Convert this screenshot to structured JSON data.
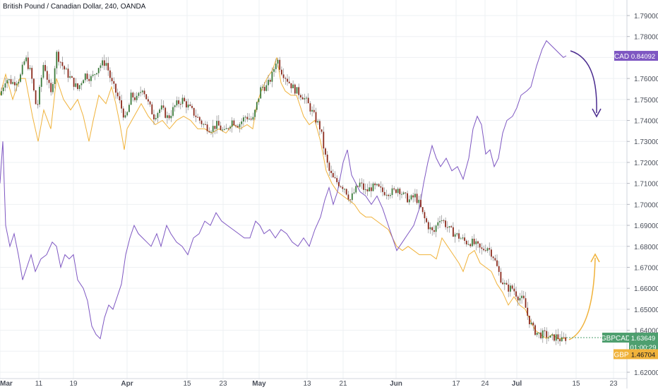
{
  "header": {
    "title": "British Pound / Canadian Dollar, 240, OANDA"
  },
  "chart_data": {
    "type": "candlestick",
    "symbol": "GBPCAD",
    "ylim": [
      1.616,
      1.795
    ],
    "y_ticks": [
      1.62,
      1.63,
      1.64,
      1.65,
      1.66,
      1.67,
      1.68,
      1.69,
      1.7,
      1.71,
      1.72,
      1.73,
      1.74,
      1.75,
      1.76,
      1.77,
      1.78,
      1.79
    ],
    "y_tick_labels": [
      "1.62000",
      "1.63000",
      "1.64000",
      "1.65000",
      "1.66000",
      "1.67000",
      "1.68000",
      "1.69000",
      "1.70000",
      "1.71000",
      "1.72000",
      "1.73000",
      "1.74000",
      "1.75000",
      "1.76000",
      "1.77000",
      "1.78000",
      "1.79000"
    ],
    "x_tick_labels": [
      "Mar",
      "11",
      "19",
      "Apr",
      "15",
      "23",
      "May",
      "13",
      "21",
      "Jun",
      "17",
      "24",
      "Jul",
      "15",
      "23"
    ],
    "grid": true,
    "close_path": [
      [
        0,
        1.752
      ],
      [
        8,
        1.76
      ],
      [
        18,
        1.758
      ],
      [
        28,
        1.76
      ],
      [
        36,
        1.77
      ],
      [
        44,
        1.762
      ],
      [
        52,
        1.745
      ],
      [
        62,
        1.768
      ],
      [
        72,
        1.752
      ],
      [
        80,
        1.772
      ],
      [
        90,
        1.765
      ],
      [
        100,
        1.76
      ],
      [
        110,
        1.755
      ],
      [
        120,
        1.762
      ],
      [
        130,
        1.76
      ],
      [
        140,
        1.766
      ],
      [
        150,
        1.768
      ],
      [
        158,
        1.758
      ],
      [
        166,
        1.752
      ],
      [
        172,
        1.746
      ],
      [
        178,
        1.74
      ],
      [
        186,
        1.752
      ],
      [
        194,
        1.75
      ],
      [
        202,
        1.756
      ],
      [
        210,
        1.748
      ],
      [
        218,
        1.742
      ],
      [
        228,
        1.746
      ],
      [
        238,
        1.741
      ],
      [
        248,
        1.747
      ],
      [
        258,
        1.75
      ],
      [
        268,
        1.746
      ],
      [
        278,
        1.742
      ],
      [
        288,
        1.738
      ],
      [
        298,
        1.736
      ],
      [
        308,
        1.738
      ],
      [
        318,
        1.734
      ],
      [
        328,
        1.74
      ],
      [
        338,
        1.738
      ],
      [
        348,
        1.742
      ],
      [
        358,
        1.74
      ],
      [
        364,
        1.748
      ],
      [
        370,
        1.756
      ],
      [
        378,
        1.756
      ],
      [
        386,
        1.762
      ],
      [
        392,
        1.77
      ],
      [
        398,
        1.764
      ],
      [
        406,
        1.76
      ],
      [
        414,
        1.756
      ],
      [
        420,
        1.754
      ],
      [
        428,
        1.752
      ],
      [
        436,
        1.748
      ],
      [
        442,
        1.744
      ],
      [
        448,
        1.74
      ],
      [
        454,
        1.736
      ],
      [
        460,
        1.724
      ],
      [
        466,
        1.716
      ],
      [
        472,
        1.712
      ],
      [
        480,
        1.71
      ],
      [
        488,
        1.708
      ],
      [
        496,
        1.702
      ],
      [
        502,
        1.706
      ],
      [
        510,
        1.71
      ],
      [
        518,
        1.706
      ],
      [
        526,
        1.708
      ],
      [
        534,
        1.708
      ],
      [
        542,
        1.706
      ],
      [
        550,
        1.706
      ],
      [
        558,
        1.706
      ],
      [
        564,
        1.708
      ],
      [
        572,
        1.704
      ],
      [
        580,
        1.702
      ],
      [
        588,
        1.704
      ],
      [
        594,
        1.7
      ],
      [
        600,
        1.694
      ],
      [
        606,
        1.69
      ],
      [
        614,
        1.686
      ],
      [
        622,
        1.694
      ],
      [
        628,
        1.692
      ],
      [
        636,
        1.688
      ],
      [
        644,
        1.686
      ],
      [
        652,
        1.684
      ],
      [
        660,
        1.682
      ],
      [
        668,
        1.682
      ],
      [
        676,
        1.68
      ],
      [
        682,
        1.678
      ],
      [
        690,
        1.68
      ],
      [
        698,
        1.676
      ],
      [
        704,
        1.67
      ],
      [
        710,
        1.664
      ],
      [
        718,
        1.66
      ],
      [
        726,
        1.66
      ],
      [
        734,
        1.656
      ],
      [
        742,
        1.654
      ],
      [
        748,
        1.646
      ],
      [
        756,
        1.64
      ],
      [
        764,
        1.638
      ],
      [
        772,
        1.638
      ],
      [
        780,
        1.636
      ],
      [
        788,
        1.637
      ],
      [
        796,
        1.635
      ],
      [
        802,
        1.6365
      ]
    ],
    "overlays": [
      {
        "name": "GBP",
        "color": "#f0b23a",
        "label_value": "1.46704",
        "scale_value": 1.6286,
        "path": [
          [
            0,
            1.752
          ],
          [
            8,
            1.762
          ],
          [
            18,
            1.75
          ],
          [
            28,
            1.76
          ],
          [
            36,
            1.76
          ],
          [
            46,
            1.742
          ],
          [
            54,
            1.73
          ],
          [
            62,
            1.745
          ],
          [
            72,
            1.736
          ],
          [
            80,
            1.76
          ],
          [
            90,
            1.75
          ],
          [
            100,
            1.745
          ],
          [
            110,
            1.75
          ],
          [
            118,
            1.742
          ],
          [
            126,
            1.73
          ],
          [
            132,
            1.74
          ],
          [
            140,
            1.752
          ],
          [
            150,
            1.748
          ],
          [
            158,
            1.756
          ],
          [
            164,
            1.748
          ],
          [
            170,
            1.738
          ],
          [
            176,
            1.726
          ],
          [
            180,
            1.736
          ],
          [
            190,
            1.742
          ],
          [
            200,
            1.748
          ],
          [
            210,
            1.742
          ],
          [
            220,
            1.738
          ],
          [
            230,
            1.74
          ],
          [
            240,
            1.736
          ],
          [
            250,
            1.74
          ],
          [
            260,
            1.742
          ],
          [
            270,
            1.74
          ],
          [
            280,
            1.736
          ],
          [
            290,
            1.736
          ],
          [
            300,
            1.734
          ],
          [
            310,
            1.736
          ],
          [
            320,
            1.734
          ],
          [
            330,
            1.738
          ],
          [
            340,
            1.736
          ],
          [
            350,
            1.738
          ],
          [
            358,
            1.736
          ],
          [
            364,
            1.748
          ],
          [
            370,
            1.754
          ],
          [
            378,
            1.76
          ],
          [
            386,
            1.764
          ],
          [
            392,
            1.77
          ],
          [
            398,
            1.758
          ],
          [
            404,
            1.754
          ],
          [
            412,
            1.752
          ],
          [
            420,
            1.752
          ],
          [
            430,
            1.742
          ],
          [
            438,
            1.738
          ],
          [
            446,
            1.74
          ],
          [
            454,
            1.73
          ],
          [
            462,
            1.716
          ],
          [
            470,
            1.71
          ],
          [
            478,
            1.706
          ],
          [
            486,
            1.704
          ],
          [
            494,
            1.702
          ],
          [
            502,
            1.7
          ],
          [
            510,
            1.696
          ],
          [
            518,
            1.694
          ],
          [
            526,
            1.694
          ],
          [
            534,
            1.692
          ],
          [
            542,
            1.69
          ],
          [
            550,
            1.688
          ],
          [
            556,
            1.684
          ],
          [
            562,
            1.68
          ],
          [
            570,
            1.678
          ],
          [
            578,
            1.68
          ],
          [
            586,
            1.678
          ],
          [
            594,
            1.676
          ],
          [
            602,
            1.676
          ],
          [
            610,
            1.676
          ],
          [
            618,
            1.674
          ],
          [
            626,
            1.684
          ],
          [
            634,
            1.68
          ],
          [
            642,
            1.676
          ],
          [
            650,
            1.672
          ],
          [
            656,
            1.668
          ],
          [
            664,
            1.676
          ],
          [
            672,
            1.678
          ],
          [
            680,
            1.672
          ],
          [
            688,
            1.67
          ],
          [
            696,
            1.668
          ],
          [
            704,
            1.662
          ],
          [
            712,
            1.658
          ],
          [
            720,
            1.652
          ],
          [
            728,
            1.656
          ],
          [
            736,
            1.652
          ],
          [
            744,
            1.65
          ],
          [
            752,
            1.644
          ],
          [
            758,
            1.64
          ],
          [
            766,
            1.638
          ],
          [
            774,
            1.636
          ],
          [
            782,
            1.638
          ],
          [
            790,
            1.636
          ],
          [
            798,
            1.636
          ],
          [
            802,
            1.6365
          ]
        ]
      },
      {
        "name": "CAD",
        "color": "#7e57c2",
        "label_value": "0.84092",
        "scale_value": 1.7708,
        "path": [
          [
            0,
            1.71
          ],
          [
            4,
            1.73
          ],
          [
            8,
            1.69
          ],
          [
            14,
            1.68
          ],
          [
            20,
            1.686
          ],
          [
            26,
            1.676
          ],
          [
            32,
            1.664
          ],
          [
            38,
            1.67
          ],
          [
            44,
            1.676
          ],
          [
            50,
            1.668
          ],
          [
            58,
            1.674
          ],
          [
            66,
            1.676
          ],
          [
            74,
            1.682
          ],
          [
            80,
            1.68
          ],
          [
            86,
            1.67
          ],
          [
            92,
            1.676
          ],
          [
            98,
            1.674
          ],
          [
            104,
            1.676
          ],
          [
            110,
            1.664
          ],
          [
            118,
            1.66
          ],
          [
            124,
            1.654
          ],
          [
            130,
            1.642
          ],
          [
            136,
            1.638
          ],
          [
            142,
            1.636
          ],
          [
            148,
            1.646
          ],
          [
            154,
            1.652
          ],
          [
            160,
            1.65
          ],
          [
            166,
            1.656
          ],
          [
            172,
            1.662
          ],
          [
            178,
            1.676
          ],
          [
            184,
            1.684
          ],
          [
            190,
            1.69
          ],
          [
            196,
            1.686
          ],
          [
            202,
            1.684
          ],
          [
            208,
            1.682
          ],
          [
            214,
            1.68
          ],
          [
            222,
            1.686
          ],
          [
            228,
            1.68
          ],
          [
            236,
            1.69
          ],
          [
            242,
            1.686
          ],
          [
            250,
            1.682
          ],
          [
            258,
            1.68
          ],
          [
            266,
            1.676
          ],
          [
            274,
            1.684
          ],
          [
            282,
            1.686
          ],
          [
            290,
            1.692
          ],
          [
            298,
            1.69
          ],
          [
            306,
            1.696
          ],
          [
            314,
            1.692
          ],
          [
            322,
            1.69
          ],
          [
            330,
            1.688
          ],
          [
            338,
            1.686
          ],
          [
            346,
            1.684
          ],
          [
            354,
            1.684
          ],
          [
            362,
            1.692
          ],
          [
            368,
            1.69
          ],
          [
            374,
            1.686
          ],
          [
            382,
            1.688
          ],
          [
            390,
            1.684
          ],
          [
            398,
            1.688
          ],
          [
            406,
            1.686
          ],
          [
            414,
            1.682
          ],
          [
            422,
            1.68
          ],
          [
            430,
            1.684
          ],
          [
            438,
            1.68
          ],
          [
            446,
            1.688
          ],
          [
            454,
            1.694
          ],
          [
            460,
            1.702
          ],
          [
            466,
            1.708
          ],
          [
            472,
            1.7
          ],
          [
            478,
            1.706
          ],
          [
            486,
            1.72
          ],
          [
            492,
            1.726
          ],
          [
            498,
            1.714
          ],
          [
            504,
            1.71
          ],
          [
            510,
            1.706
          ],
          [
            518,
            1.704
          ],
          [
            526,
            1.7
          ],
          [
            534,
            1.704
          ],
          [
            542,
            1.698
          ],
          [
            550,
            1.69
          ],
          [
            556,
            1.684
          ],
          [
            562,
            1.678
          ],
          [
            570,
            1.682
          ],
          [
            578,
            1.686
          ],
          [
            586,
            1.69
          ],
          [
            594,
            1.698
          ],
          [
            600,
            1.71
          ],
          [
            606,
            1.72
          ],
          [
            612,
            1.728
          ],
          [
            618,
            1.722
          ],
          [
            624,
            1.718
          ],
          [
            632,
            1.722
          ],
          [
            640,
            1.716
          ],
          [
            648,
            1.718
          ],
          [
            656,
            1.712
          ],
          [
            664,
            1.722
          ],
          [
            670,
            1.736
          ],
          [
            676,
            1.742
          ],
          [
            682,
            1.738
          ],
          [
            688,
            1.724
          ],
          [
            694,
            1.726
          ],
          [
            700,
            1.718
          ],
          [
            706,
            1.722
          ],
          [
            712,
            1.734
          ],
          [
            718,
            1.74
          ],
          [
            726,
            1.742
          ],
          [
            732,
            1.746
          ],
          [
            738,
            1.752
          ],
          [
            746,
            1.754
          ],
          [
            752,
            1.756
          ],
          [
            760,
            1.766
          ],
          [
            768,
            1.774
          ],
          [
            774,
            1.778
          ],
          [
            780,
            1.776
          ],
          [
            786,
            1.774
          ],
          [
            792,
            1.772
          ],
          [
            798,
            1.77
          ],
          [
            802,
            1.7708
          ]
        ]
      }
    ],
    "price_label": {
      "symbol": "GBPCAD",
      "value": "1.63649",
      "countdown": "01:00:29",
      "color": "#4e9f6f"
    },
    "annotations": [
      {
        "type": "arrow",
        "color": "#4a2b8f",
        "direction": "down"
      },
      {
        "type": "arrow",
        "color": "#f0b23a",
        "direction": "up"
      }
    ]
  }
}
